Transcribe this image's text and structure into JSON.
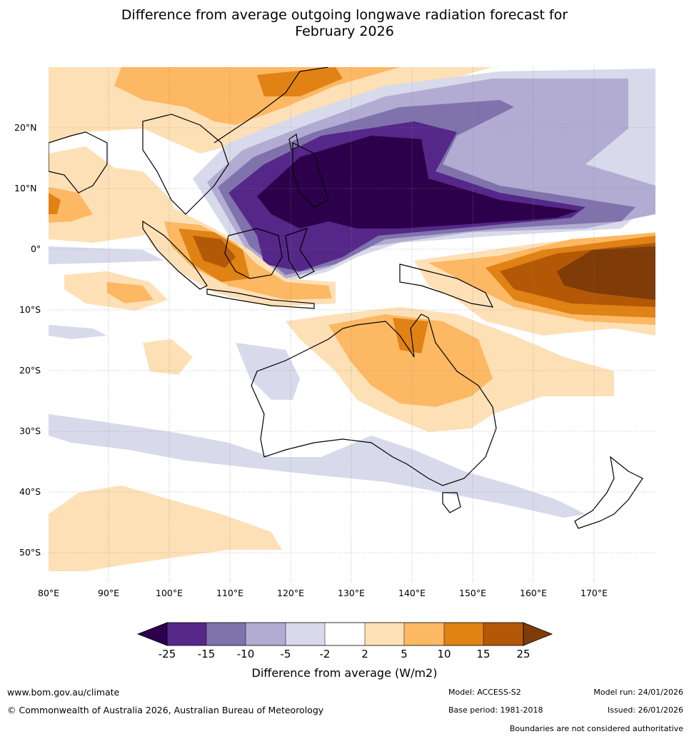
{
  "title": {
    "line1": "Difference from average outgoing longwave radiation forecast for",
    "line2": "February 2026"
  },
  "map": {
    "lat_labels": [
      "20°N",
      "10°N",
      "0°",
      "10°S",
      "20°S",
      "30°S",
      "40°S",
      "50°S"
    ],
    "lon_labels": [
      "80°E",
      "90°E",
      "100°E",
      "110°E",
      "120°E",
      "130°E",
      "140°E",
      "150°E",
      "160°E",
      "170°E"
    ],
    "lon_range": [
      80,
      180
    ],
    "lat_range": [
      -55,
      30
    ]
  },
  "colorbar": {
    "label": "Difference from average (W/m2)",
    "ticks": [
      "-25",
      "-15",
      "-10",
      "-5",
      "-2",
      "2",
      "5",
      "10",
      "15",
      "25"
    ],
    "colors": {
      "lt25": "#2d004b",
      "n25_15": "#542788",
      "n15_10": "#8073ac",
      "n10_5": "#b2abd2",
      "n5_2": "#d8daeb",
      "n2_2": "#ffffff",
      "p2_5": "#fee0b6",
      "p5_10": "#fdb863",
      "p10_15": "#e08214",
      "p15_25": "#b35806",
      "gt25": "#7f3b08"
    }
  },
  "footer": {
    "website": "www.bom.gov.au/climate",
    "copyright": "© Commonwealth of Australia 2026, Australian Bureau of Meteorology",
    "model": "Model: ACCESS-S2",
    "base_period": "Base period: 1981-2018",
    "model_run": "Model run: 24/01/2026",
    "issued": "Issued: 26/01/2026",
    "disclaimer": "Boundaries are not considered authoritative"
  }
}
